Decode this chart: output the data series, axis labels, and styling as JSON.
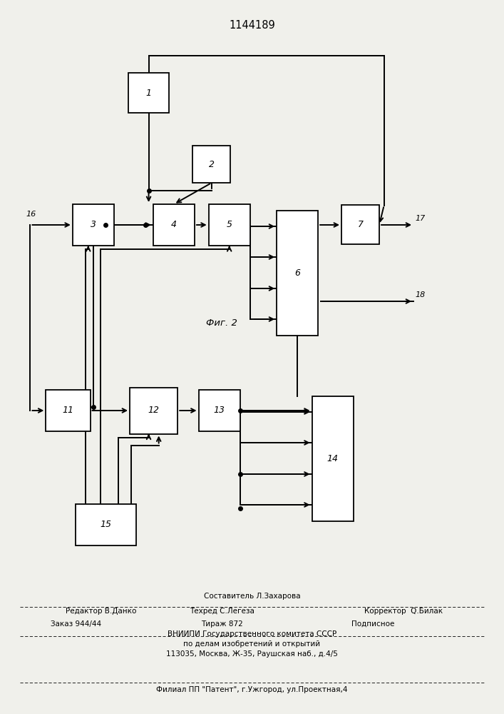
{
  "title": "1144189",
  "bg_color": "#f0f0eb",
  "line_color": "#000000",
  "fig_caption": "Фиг. 2",
  "boxes": {
    "1": [
      0.295,
      0.87,
      0.08,
      0.055
    ],
    "2": [
      0.42,
      0.77,
      0.075,
      0.052
    ],
    "3": [
      0.185,
      0.685,
      0.082,
      0.058
    ],
    "4": [
      0.345,
      0.685,
      0.082,
      0.058
    ],
    "5": [
      0.455,
      0.685,
      0.082,
      0.058
    ],
    "7": [
      0.715,
      0.685,
      0.075,
      0.055
    ],
    "11": [
      0.135,
      0.425,
      0.088,
      0.058
    ],
    "12": [
      0.305,
      0.425,
      0.095,
      0.065
    ],
    "13": [
      0.435,
      0.425,
      0.082,
      0.058
    ],
    "15": [
      0.21,
      0.265,
      0.12,
      0.058
    ]
  },
  "tall_boxes": {
    "6": [
      0.59,
      0.618,
      0.082,
      0.175
    ],
    "14": [
      0.66,
      0.358,
      0.082,
      0.175
    ]
  }
}
